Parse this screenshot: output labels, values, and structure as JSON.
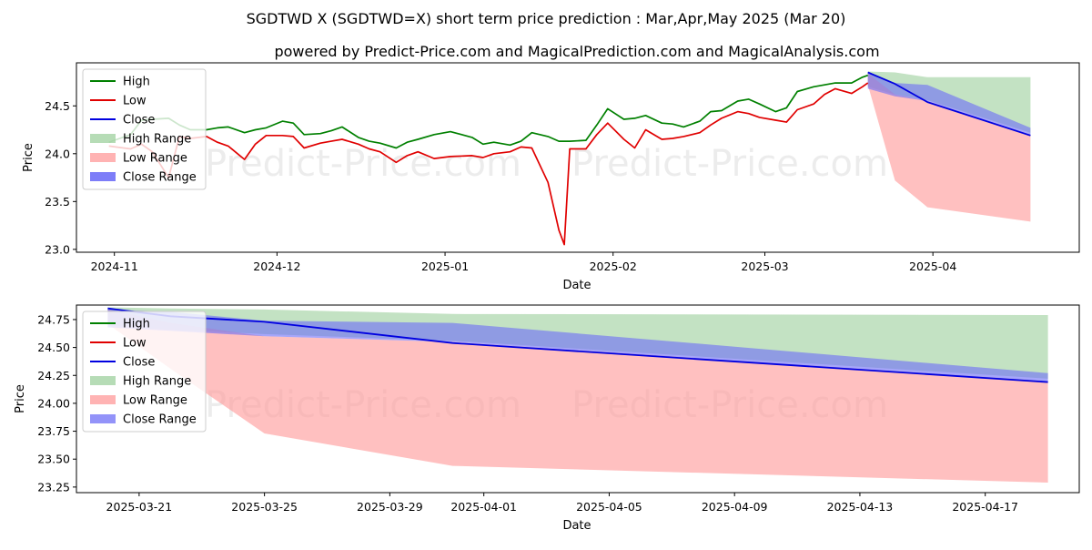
{
  "title": "SGDTWD X (SGDTWD=X) short term price prediction : Mar,Apr,May 2025 (Mar 20)",
  "subtitle": "powered by Predict-Price.com and MagicalPrediction.com and MagicalAnalysis.com",
  "watermark": "Predict-Price.com",
  "colors": {
    "high": "#008000",
    "low": "#e00000",
    "close": "#0000e0",
    "high_range": "#9ed09e",
    "low_range": "#ff9a9a",
    "close_range": "#6f6ff7"
  },
  "chart_data": [
    {
      "type": "line",
      "title": "",
      "xlabel": "Date",
      "ylabel": "Price",
      "ylim": [
        22.97,
        24.95
      ],
      "xlim": [
        "2024-10-25",
        "2025-04-28"
      ],
      "x_ticks": [
        {
          "date": "2024-11-01",
          "label": "2024-11"
        },
        {
          "date": "2024-12-01",
          "label": "2024-12"
        },
        {
          "date": "2025-01-01",
          "label": "2025-01"
        },
        {
          "date": "2025-02-01",
          "label": "2025-02"
        },
        {
          "date": "2025-03-01",
          "label": "2025-03"
        },
        {
          "date": "2025-04-01",
          "label": "2025-04"
        }
      ],
      "y_ticks": [
        23.0,
        23.5,
        24.0,
        24.5
      ],
      "y_tick_labels": [
        "23.0",
        "23.5",
        "24.0",
        "24.5"
      ],
      "legend": {
        "position": "top-left",
        "entries": [
          "High",
          "Low",
          "Close",
          "High Range",
          "Low Range",
          "Close Range"
        ]
      },
      "history_dates": [
        "2024-10-31",
        "2024-11-04",
        "2024-11-06",
        "2024-11-08",
        "2024-11-11",
        "2024-11-13",
        "2024-11-15",
        "2024-11-18",
        "2024-11-20",
        "2024-11-22",
        "2024-11-25",
        "2024-11-27",
        "2024-11-29",
        "2024-12-02",
        "2024-12-04",
        "2024-12-06",
        "2024-12-09",
        "2024-12-11",
        "2024-12-13",
        "2024-12-16",
        "2024-12-18",
        "2024-12-20",
        "2024-12-23",
        "2024-12-25",
        "2024-12-27",
        "2024-12-30",
        "2025-01-02",
        "2025-01-06",
        "2025-01-08",
        "2025-01-10",
        "2025-01-13",
        "2025-01-15",
        "2025-01-17",
        "2025-01-20",
        "2025-01-22",
        "2025-01-23",
        "2025-01-24",
        "2025-01-27",
        "2025-01-29",
        "2025-01-31",
        "2025-02-03",
        "2025-02-05",
        "2025-02-07",
        "2025-02-10",
        "2025-02-12",
        "2025-02-14",
        "2025-02-17",
        "2025-02-19",
        "2025-02-21",
        "2025-02-24",
        "2025-02-26",
        "2025-02-28",
        "2025-03-03",
        "2025-03-05",
        "2025-03-07",
        "2025-03-10",
        "2025-03-12",
        "2025-03-14",
        "2025-03-17",
        "2025-03-19",
        "2025-03-20"
      ],
      "series": [
        {
          "name": "High",
          "color": "#008000",
          "values": [
            24.12,
            24.2,
            24.35,
            24.36,
            24.37,
            24.3,
            24.25,
            24.25,
            24.27,
            24.28,
            24.22,
            24.25,
            24.27,
            24.34,
            24.32,
            24.2,
            24.21,
            24.24,
            24.28,
            24.17,
            24.13,
            24.11,
            24.06,
            24.12,
            24.15,
            24.2,
            24.23,
            24.17,
            24.1,
            24.12,
            24.09,
            24.13,
            24.22,
            24.18,
            24.13,
            24.13,
            24.13,
            24.14,
            24.3,
            24.47,
            24.36,
            24.37,
            24.4,
            24.32,
            24.31,
            24.28,
            24.34,
            24.44,
            24.45,
            24.55,
            24.57,
            24.52,
            24.44,
            24.48,
            24.65,
            24.7,
            24.72,
            24.74,
            24.74,
            24.8,
            24.82
          ]
        },
        {
          "name": "Low",
          "color": "#e00000",
          "values": [
            24.08,
            24.05,
            24.1,
            24.02,
            23.75,
            24.18,
            24.16,
            24.18,
            24.12,
            24.08,
            23.94,
            24.1,
            24.19,
            24.19,
            24.18,
            24.06,
            24.11,
            24.13,
            24.15,
            24.1,
            24.05,
            24.02,
            23.91,
            23.98,
            24.02,
            23.95,
            23.97,
            23.98,
            23.96,
            24.0,
            24.02,
            24.07,
            24.06,
            23.7,
            23.2,
            23.05,
            24.05,
            24.05,
            24.2,
            24.32,
            24.15,
            24.06,
            24.25,
            24.15,
            24.16,
            24.18,
            24.22,
            24.3,
            24.37,
            24.44,
            24.42,
            24.38,
            24.35,
            24.33,
            24.46,
            24.52,
            24.62,
            24.68,
            24.63,
            24.7,
            24.74
          ]
        },
        {
          "name": "Close",
          "color": "#0000e0",
          "values": []
        }
      ],
      "forecast": {
        "dates": [
          "2025-03-20",
          "2025-03-25",
          "2025-03-31",
          "2025-04-19"
        ],
        "close": [
          24.85,
          24.73,
          24.54,
          24.19
        ],
        "high_range": {
          "upper": [
            24.86,
            24.85,
            24.8,
            24.8
          ],
          "lower": [
            24.7,
            24.62,
            24.56,
            24.22
          ]
        },
        "low_range": {
          "upper": [
            24.84,
            24.62,
            24.55,
            24.2
          ],
          "lower": [
            24.72,
            23.72,
            23.44,
            23.29
          ]
        },
        "close_range": {
          "upper": [
            24.84,
            24.74,
            24.72,
            24.27
          ],
          "lower": [
            24.68,
            24.6,
            24.55,
            24.19
          ]
        }
      }
    },
    {
      "type": "line",
      "title": "",
      "xlabel": "Date",
      "ylabel": "Price",
      "ylim": [
        23.2,
        24.88
      ],
      "xlim": [
        "2025-03-19",
        "2025-04-20"
      ],
      "x_ticks": [
        {
          "date": "2025-03-21",
          "label": "2025-03-21"
        },
        {
          "date": "2025-03-25",
          "label": "2025-03-25"
        },
        {
          "date": "2025-03-29",
          "label": "2025-03-29"
        },
        {
          "date": "2025-04-01",
          "label": "2025-04-01"
        },
        {
          "date": "2025-04-05",
          "label": "2025-04-05"
        },
        {
          "date": "2025-04-09",
          "label": "2025-04-09"
        },
        {
          "date": "2025-04-13",
          "label": "2025-04-13"
        },
        {
          "date": "2025-04-17",
          "label": "2025-04-17"
        }
      ],
      "y_ticks": [
        23.25,
        23.5,
        23.75,
        24.0,
        24.25,
        24.5,
        24.75
      ],
      "y_tick_labels": [
        "23.25",
        "23.50",
        "23.75",
        "24.00",
        "24.25",
        "24.50",
        "24.75"
      ],
      "legend": {
        "position": "top-left",
        "entries": [
          "High",
          "Low",
          "Close",
          "High Range",
          "Low Range",
          "Close Range"
        ]
      },
      "forecast": {
        "dates": [
          "2025-03-20",
          "2025-03-22",
          "2025-03-25",
          "2025-03-31",
          "2025-04-19"
        ],
        "close": [
          24.85,
          24.78,
          24.73,
          24.54,
          24.19
        ],
        "high_range": {
          "upper": [
            24.86,
            24.85,
            24.84,
            24.8,
            24.79
          ],
          "lower": [
            24.7,
            24.66,
            24.62,
            24.56,
            24.22
          ]
        },
        "low_range": {
          "upper": [
            24.84,
            24.72,
            24.6,
            24.55,
            24.2
          ],
          "lower": [
            24.71,
            24.31,
            23.73,
            23.44,
            23.29
          ]
        },
        "close_range": {
          "upper": [
            24.84,
            24.82,
            24.74,
            24.72,
            24.27
          ],
          "lower": [
            24.68,
            24.65,
            24.6,
            24.55,
            24.19
          ]
        }
      }
    }
  ]
}
